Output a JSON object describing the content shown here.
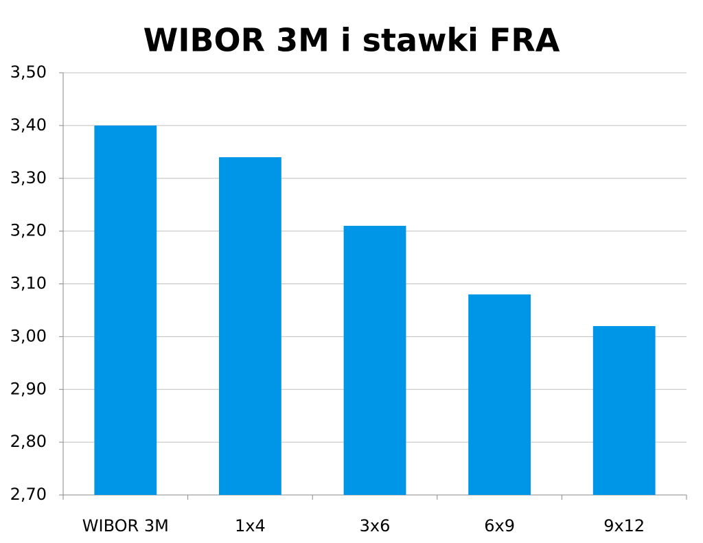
{
  "chart_data": {
    "type": "bar",
    "title": "WIBOR 3M i stawki FRA",
    "categories": [
      "WIBOR 3M",
      "1x4",
      "3x6",
      "6x9",
      "9x12"
    ],
    "values": [
      3.4,
      3.34,
      3.21,
      3.08,
      3.02
    ],
    "color": "#0096e8",
    "ylim": [
      2.7,
      3.5
    ],
    "yticks": [
      {
        "value": 2.7,
        "label": "2,70"
      },
      {
        "value": 2.8,
        "label": "2,80"
      },
      {
        "value": 2.9,
        "label": "2,90"
      },
      {
        "value": 3.0,
        "label": "3,00"
      },
      {
        "value": 3.1,
        "label": "3,10"
      },
      {
        "value": 3.2,
        "label": "3,20"
      },
      {
        "value": 3.3,
        "label": "3,30"
      },
      {
        "value": 3.4,
        "label": "3,40"
      },
      {
        "value": 3.5,
        "label": "3,50"
      }
    ],
    "grid": true
  }
}
